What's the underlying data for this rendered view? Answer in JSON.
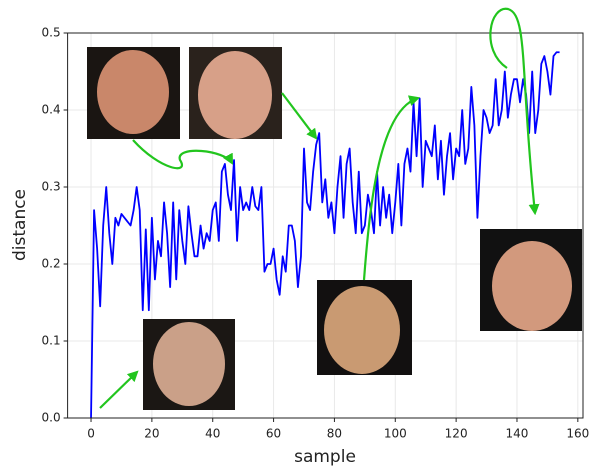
{
  "chart_data": {
    "type": "line",
    "xlabel": "sample",
    "ylabel": "distance",
    "x": [
      0,
      1,
      2,
      3,
      4,
      5,
      6,
      7,
      8,
      9,
      10,
      11,
      12,
      13,
      14,
      15,
      16,
      17,
      18,
      19,
      20,
      21,
      22,
      23,
      24,
      25,
      26,
      27,
      28,
      29,
      30,
      31,
      32,
      33,
      34,
      35,
      36,
      37,
      38,
      39,
      40,
      41,
      42,
      43,
      44,
      45,
      46,
      47,
      48,
      49,
      50,
      51,
      52,
      53,
      54,
      55,
      56,
      57,
      58,
      59,
      60,
      61,
      62,
      63,
      64,
      65,
      66,
      67,
      68,
      69,
      70,
      71,
      72,
      73,
      74,
      75,
      76,
      77,
      78,
      79,
      80,
      81,
      82,
      83,
      84,
      85,
      86,
      87,
      88,
      89,
      90,
      91,
      92,
      93,
      94,
      95,
      96,
      97,
      98,
      99,
      100,
      101,
      102,
      103,
      104,
      105,
      106,
      107,
      108,
      109,
      110,
      111,
      112,
      113,
      114,
      115,
      116,
      117,
      118,
      119,
      120,
      121,
      122,
      123,
      124,
      125,
      126,
      127,
      128,
      129,
      130,
      131,
      132,
      133,
      134,
      135,
      136,
      137,
      138,
      139,
      140,
      141,
      142,
      143,
      144,
      145,
      146,
      147,
      148,
      149,
      150,
      151,
      152,
      153,
      154
    ],
    "series": [
      {
        "color": "#0000ff",
        "values": [
          0.0,
          0.27,
          0.22,
          0.145,
          0.25,
          0.3,
          0.24,
          0.2,
          0.26,
          0.25,
          0.265,
          0.26,
          0.255,
          0.25,
          0.27,
          0.3,
          0.27,
          0.14,
          0.245,
          0.14,
          0.26,
          0.18,
          0.23,
          0.21,
          0.28,
          0.24,
          0.17,
          0.28,
          0.18,
          0.27,
          0.23,
          0.2,
          0.275,
          0.24,
          0.21,
          0.21,
          0.25,
          0.22,
          0.24,
          0.23,
          0.27,
          0.28,
          0.23,
          0.32,
          0.33,
          0.29,
          0.27,
          0.335,
          0.23,
          0.3,
          0.27,
          0.28,
          0.27,
          0.3,
          0.275,
          0.27,
          0.3,
          0.19,
          0.2,
          0.2,
          0.22,
          0.18,
          0.16,
          0.21,
          0.19,
          0.25,
          0.25,
          0.23,
          0.17,
          0.21,
          0.35,
          0.28,
          0.27,
          0.32,
          0.355,
          0.37,
          0.28,
          0.31,
          0.26,
          0.28,
          0.24,
          0.3,
          0.34,
          0.26,
          0.33,
          0.35,
          0.28,
          0.24,
          0.32,
          0.24,
          0.25,
          0.29,
          0.27,
          0.24,
          0.32,
          0.25,
          0.3,
          0.26,
          0.29,
          0.24,
          0.28,
          0.33,
          0.25,
          0.33,
          0.35,
          0.32,
          0.41,
          0.34,
          0.415,
          0.3,
          0.36,
          0.35,
          0.34,
          0.38,
          0.31,
          0.36,
          0.29,
          0.34,
          0.37,
          0.31,
          0.35,
          0.34,
          0.4,
          0.33,
          0.35,
          0.43,
          0.38,
          0.26,
          0.34,
          0.4,
          0.39,
          0.37,
          0.38,
          0.44,
          0.38,
          0.4,
          0.45,
          0.39,
          0.42,
          0.44,
          0.44,
          0.41,
          0.44,
          0.42,
          0.37,
          0.45,
          0.37,
          0.4,
          0.46,
          0.47,
          0.45,
          0.42,
          0.47,
          0.475,
          0.475
        ]
      }
    ],
    "xlim": [
      -7.7,
      161.7
    ],
    "ylim": [
      0,
      0.5
    ],
    "xticks": [
      0,
      20,
      40,
      60,
      80,
      100,
      120,
      140,
      160
    ],
    "yticks": [
      {
        "value": 0,
        "label": "0.0"
      },
      0.1,
      0.2,
      0.3,
      0.4,
      0.5
    ],
    "grid": true
  }
}
